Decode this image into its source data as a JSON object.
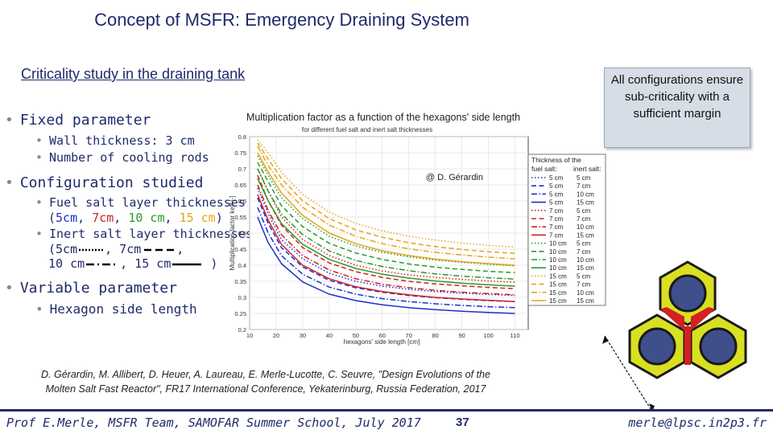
{
  "slide": {
    "title": "Concept of MSFR: Emergency Draining System",
    "subtitle": "Criticality study in the draining tank",
    "callout": "All configurations ensure sub-criticality with a sufficient margin",
    "bullets": {
      "fixed_parameter": "Fixed parameter",
      "wall_thickness": "Wall thickness: 3 cm",
      "cooling_rods": "Number of cooling rods",
      "config_studied": "Configuration studied",
      "fuel_salt_line1": "Fuel salt layer thicknesses",
      "fuel_5": "5cm",
      "fuel_7": "7cm",
      "fuel_10": "10 cm",
      "fuel_15": "15 cm",
      "inert_salt_line1": "Inert salt layer thicknesses",
      "inert_5": "(5cm",
      "inert_7": ", 7cm",
      "inert_10": "10 cm",
      "inert_15": "15 cm",
      "variable_parameter": "Variable parameter",
      "hexagon_side": "Hexagon side length"
    },
    "reference_line1": "D. Gérardin, M. Allibert, D. Heuer, A. Laureau, E. Merle-Lucotte, C. Seuvre, \"Design Evolutions of the",
    "reference_line2": "Molten Salt Fast Reactor\", FR17 International Conference, Yekaterinburg, Russia Federation, 2017",
    "footer_left": "Prof E.Merle, MSFR Team, SAMOFAR Summer School, July 2017",
    "footer_page": "37",
    "footer_right": "merle@lpsc.in2p3.fr",
    "colors": {
      "title": "#1f2a6b",
      "fuel_5": "#1a2fcf",
      "fuel_7": "#d42020",
      "fuel_10": "#2a9a2a",
      "fuel_15": "#e8a317",
      "hex_fill": "#d9e021",
      "hex_core": "#3f4f8c",
      "gap": "#d42020"
    }
  },
  "chart_data": {
    "type": "line",
    "title": "Multiplication factor as a function of the hexagons' side length",
    "subtitle": "for different fuel salt and inert salt thicknesses",
    "xlabel": "hexagons' side length [cm]",
    "ylabel": "Multiplication factor keff [-]",
    "annotation": "@ D. Gérardin",
    "xlim": [
      10,
      115
    ],
    "ylim": [
      0.2,
      0.8
    ],
    "xticks": [
      10,
      20,
      30,
      40,
      50,
      60,
      70,
      80,
      90,
      100,
      110
    ],
    "yticks": [
      0.2,
      0.25,
      0.3,
      0.35,
      0.4,
      0.45,
      0.5,
      0.55,
      0.6,
      0.65,
      0.7,
      0.75,
      0.8
    ],
    "x": [
      13,
      17,
      22,
      30,
      40,
      50,
      60,
      70,
      80,
      90,
      100,
      110
    ],
    "legend_header": "Thickness of the",
    "legend_col1": "fuel salt:",
    "legend_col2": "inert salt:",
    "series": [
      {
        "fuel": "5 cm",
        "inert": "5 cm",
        "style": "dot",
        "color": "#1a2fcf",
        "values": [
          0.64,
          0.56,
          0.48,
          0.42,
          0.375,
          0.35,
          0.335,
          0.325,
          0.318,
          0.313,
          0.309,
          0.306
        ]
      },
      {
        "fuel": "5 cm",
        "inert": "7 cm",
        "style": "dash",
        "color": "#1a2fcf",
        "values": [
          0.61,
          0.53,
          0.455,
          0.395,
          0.353,
          0.33,
          0.316,
          0.306,
          0.299,
          0.294,
          0.29,
          0.287
        ]
      },
      {
        "fuel": "5 cm",
        "inert": "10 cm",
        "style": "dashdot",
        "color": "#1a2fcf",
        "values": [
          0.58,
          0.5,
          0.43,
          0.372,
          0.332,
          0.31,
          0.296,
          0.287,
          0.28,
          0.275,
          0.271,
          0.268
        ]
      },
      {
        "fuel": "5 cm",
        "inert": "15 cm",
        "style": "solid",
        "color": "#1a2fcf",
        "values": [
          0.55,
          0.47,
          0.405,
          0.348,
          0.31,
          0.29,
          0.277,
          0.268,
          0.262,
          0.257,
          0.253,
          0.25
        ]
      },
      {
        "fuel": "7 cm",
        "inert": "5 cm",
        "style": "dot",
        "color": "#d42020",
        "values": [
          0.7,
          0.63,
          0.55,
          0.48,
          0.43,
          0.4,
          0.382,
          0.37,
          0.362,
          0.356,
          0.351,
          0.347
        ]
      },
      {
        "fuel": "7 cm",
        "inert": "7 cm",
        "style": "dash",
        "color": "#d42020",
        "values": [
          0.68,
          0.6,
          0.525,
          0.455,
          0.407,
          0.38,
          0.362,
          0.35,
          0.342,
          0.336,
          0.331,
          0.327
        ]
      },
      {
        "fuel": "7 cm",
        "inert": "10 cm",
        "style": "dashdot",
        "color": "#d42020",
        "values": [
          0.65,
          0.57,
          0.495,
          0.43,
          0.385,
          0.358,
          0.341,
          0.33,
          0.322,
          0.316,
          0.312,
          0.308
        ]
      },
      {
        "fuel": "7 cm",
        "inert": "15 cm",
        "style": "solid",
        "color": "#d42020",
        "values": [
          0.62,
          0.54,
          0.465,
          0.4,
          0.358,
          0.333,
          0.318,
          0.308,
          0.3,
          0.295,
          0.291,
          0.287
        ]
      },
      {
        "fuel": "10 cm",
        "inert": "5 cm",
        "style": "dot",
        "color": "#2a9a2a",
        "values": [
          0.74,
          0.68,
          0.61,
          0.545,
          0.49,
          0.46,
          0.44,
          0.426,
          0.416,
          0.409,
          0.403,
          0.398
        ]
      },
      {
        "fuel": "10 cm",
        "inert": "7 cm",
        "style": "dash",
        "color": "#2a9a2a",
        "values": [
          0.72,
          0.66,
          0.585,
          0.52,
          0.468,
          0.438,
          0.418,
          0.404,
          0.394,
          0.387,
          0.381,
          0.377
        ]
      },
      {
        "fuel": "10 cm",
        "inert": "10 cm",
        "style": "dashdot",
        "color": "#2a9a2a",
        "values": [
          0.7,
          0.63,
          0.56,
          0.495,
          0.444,
          0.415,
          0.396,
          0.383,
          0.373,
          0.366,
          0.361,
          0.357
        ]
      },
      {
        "fuel": "10 cm",
        "inert": "15 cm",
        "style": "solid",
        "color": "#2a9a2a",
        "values": [
          0.67,
          0.6,
          0.53,
          0.465,
          0.418,
          0.39,
          0.372,
          0.36,
          0.351,
          0.344,
          0.339,
          0.335
        ]
      },
      {
        "fuel": "15 cm",
        "inert": "5 cm",
        "style": "dot",
        "color": "#e8a317",
        "values": [
          0.79,
          0.75,
          0.69,
          0.62,
          0.565,
          0.53,
          0.507,
          0.49,
          0.478,
          0.469,
          0.462,
          0.456
        ]
      },
      {
        "fuel": "15 cm",
        "inert": "7 cm",
        "style": "dash",
        "color": "#e8a317",
        "values": [
          0.78,
          0.73,
          0.67,
          0.6,
          0.545,
          0.51,
          0.487,
          0.47,
          0.458,
          0.449,
          0.442,
          0.437
        ]
      },
      {
        "fuel": "15 cm",
        "inert": "10 cm",
        "style": "dashdot",
        "color": "#e8a317",
        "values": [
          0.77,
          0.71,
          0.65,
          0.58,
          0.525,
          0.49,
          0.467,
          0.451,
          0.44,
          0.432,
          0.425,
          0.42
        ]
      },
      {
        "fuel": "15 cm",
        "inert": "15 cm",
        "style": "solid",
        "color": "#e8a317",
        "values": [
          0.75,
          0.69,
          0.625,
          0.555,
          0.5,
          0.467,
          0.445,
          0.43,
          0.419,
          0.411,
          0.405,
          0.4
        ]
      }
    ]
  }
}
